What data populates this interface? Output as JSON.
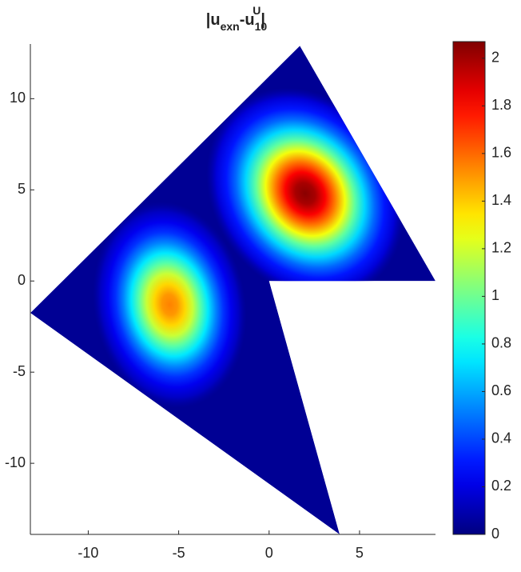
{
  "chart_data": {
    "type": "field",
    "title_parts": [
      "|u",
      "exn",
      "-u",
      "10",
      "U",
      "|"
    ],
    "colormap": "jet",
    "background": "#ffffff",
    "xlim": [
      -13.2,
      9.2
    ],
    "ylim": [
      -13.9,
      13.0
    ],
    "xticks": [
      -10,
      -5,
      0,
      5
    ],
    "yticks": [
      -10,
      -5,
      0,
      5,
      10
    ],
    "domain": {
      "x": [
        -13.2,
        1.7,
        9.2,
        0,
        3.9
      ],
      "y": [
        -1.75,
        12.9,
        0,
        0,
        -13.9
      ]
    },
    "peaks": {
      "x": [
        2,
        -5.5
      ],
      "y": [
        4.8,
        -1.3
      ],
      "values": [
        2.05,
        1.55
      ]
    },
    "clim": [
      0,
      2.07
    ],
    "cticks": [
      0,
      0.2,
      0.4,
      0.6,
      0.8,
      1,
      1.2,
      1.4,
      1.6,
      1.8,
      2
    ]
  }
}
